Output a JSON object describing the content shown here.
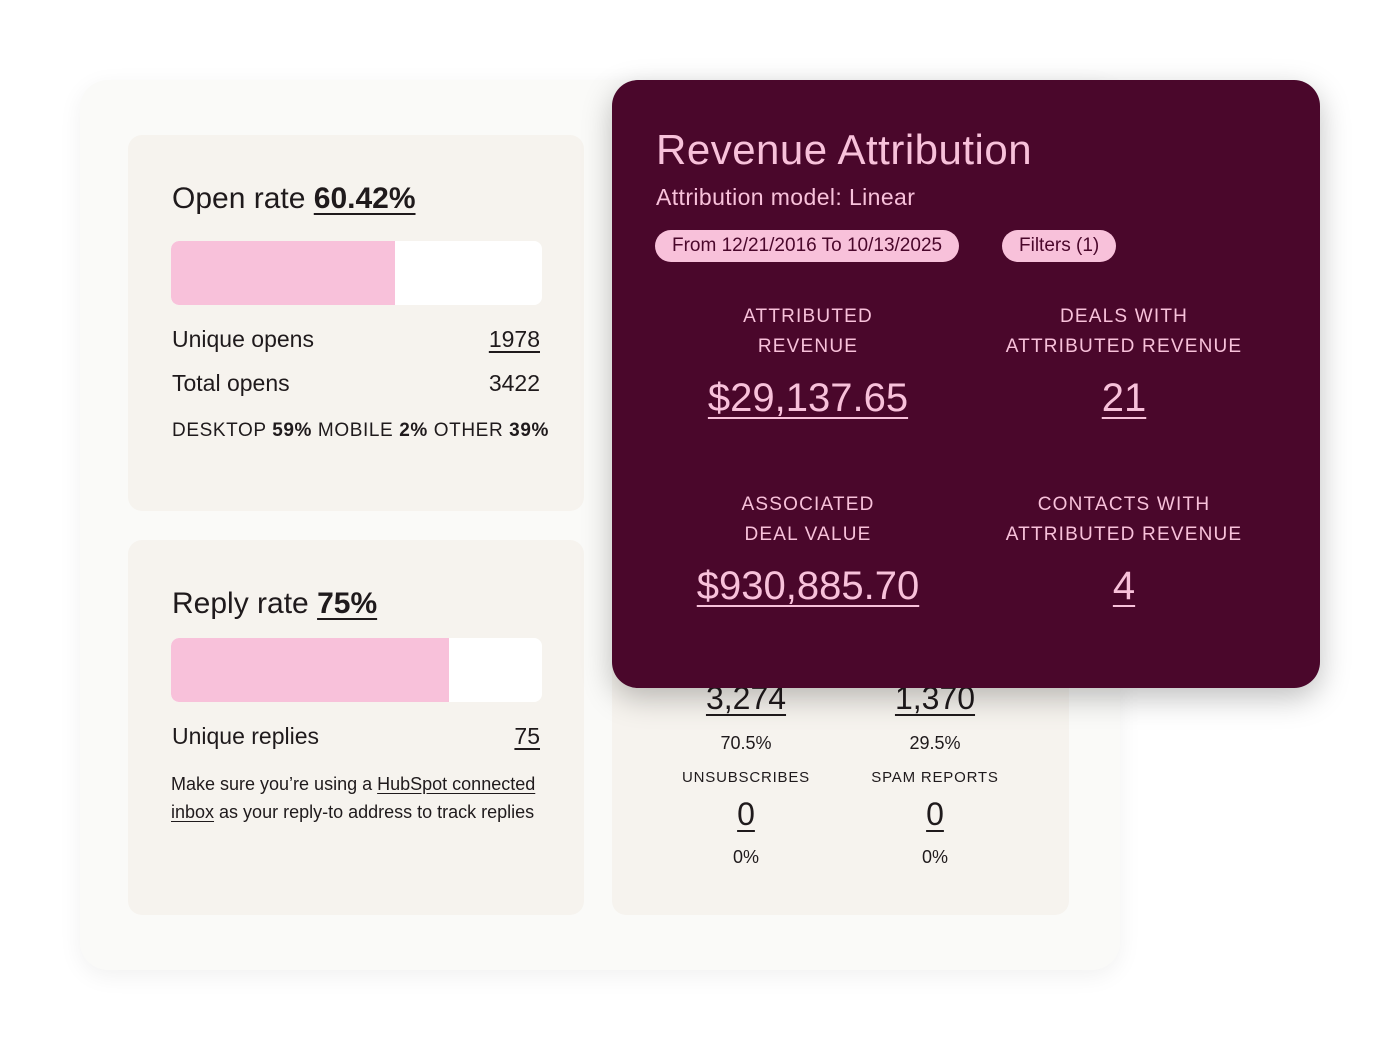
{
  "open_card": {
    "title_label": "Open rate",
    "title_value": "60.42%",
    "open_rate_fraction": 0.6042,
    "unique_opens_label": "Unique opens",
    "unique_opens_value": "1978",
    "total_opens_label": "Total opens",
    "total_opens_value": "3422",
    "devices": [
      {
        "label": "DESKTOP",
        "pct": "59%"
      },
      {
        "label": "MOBILE",
        "pct": "2%"
      },
      {
        "label": "OTHER",
        "pct": "39%"
      }
    ]
  },
  "reply_card": {
    "title_label": "Reply rate",
    "title_value": "75%",
    "reply_rate_fraction": 0.75,
    "unique_replies_label": "Unique replies",
    "unique_replies_value": "75",
    "note_prefix": "Make  sure you’re using a",
    "note_link": "HubSpot connected inbox",
    "note_suffix": "as your reply-to address to track replies"
  },
  "stats_card": {
    "col1": {
      "value": "3,274",
      "pct": "70.5%"
    },
    "col2": {
      "value": "1,370",
      "pct": "29.5%"
    },
    "unsubscribes": {
      "label": "UNSUBSCRIBES",
      "value": "0",
      "pct": "0%"
    },
    "spam_reports": {
      "label": "SPAM REPORTS",
      "value": "0",
      "pct": "0%"
    }
  },
  "revenue": {
    "title": "Revenue Attribution",
    "subtitle": "Attribution model: Linear",
    "date_range": "From 12/21/2016 To 10/13/2025",
    "filters": "Filters (1)",
    "metrics": [
      {
        "label_line1": "ATTRIBUTED",
        "label_line2": "REVENUE",
        "value": "$29,137.65"
      },
      {
        "label_line1": "DEALS WITH",
        "label_line2": "ATTRIBUTED REVENUE",
        "value": "21"
      },
      {
        "label_line1": "ASSOCIATED",
        "label_line2": "DEAL VALUE",
        "value": "$930,885.70"
      },
      {
        "label_line1": "CONTACTS WITH",
        "label_line2": "ATTRIBUTED REVENUE",
        "value": "4"
      }
    ]
  },
  "colors": {
    "panel_bg": "#4a072b",
    "accent_pink": "#f8c1da",
    "card_bg": "#f6f3ee"
  }
}
